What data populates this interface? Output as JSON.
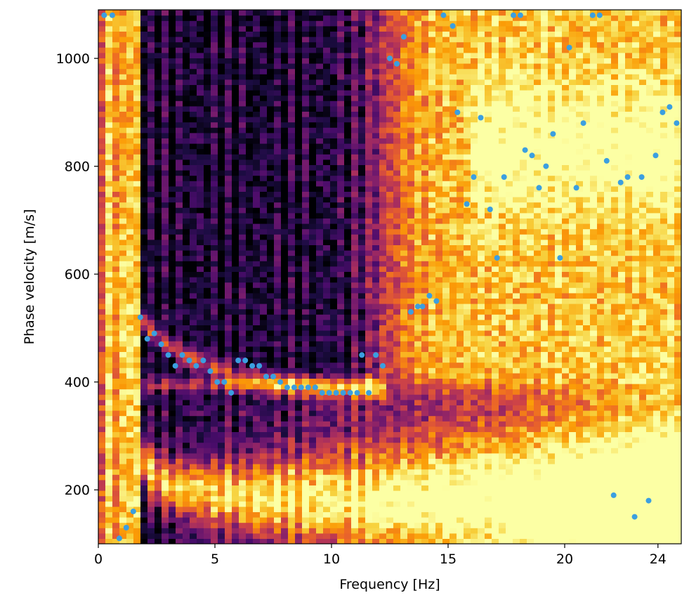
{
  "chart_data": {
    "type": "heatmap",
    "title": "",
    "xlabel": "Frequency [Hz]",
    "ylabel": "Phase velocity [m/s]",
    "xlim": [
      0,
      25
    ],
    "ylim": [
      100,
      1090
    ],
    "xticks": [
      0,
      5,
      10,
      15,
      20,
      24
    ],
    "yticks": [
      200,
      400,
      600,
      800,
      1000
    ],
    "grid": false,
    "colormap": [
      "#000004",
      "#1b0c41",
      "#4a0c6b",
      "#781c6d",
      "#a52c60",
      "#cf4446",
      "#ed6925",
      "#fb9b06",
      "#f7d13d",
      "#fcffa4"
    ],
    "marker_color": "#3b9fe0",
    "picked_points": [
      [
        0.25,
        1080
      ],
      [
        0.6,
        1080
      ],
      [
        0.9,
        110
      ],
      [
        1.2,
        130
      ],
      [
        1.5,
        160
      ],
      [
        1.8,
        520
      ],
      [
        2.1,
        480
      ],
      [
        2.4,
        490
      ],
      [
        2.7,
        470
      ],
      [
        3.0,
        450
      ],
      [
        3.3,
        430
      ],
      [
        3.6,
        450
      ],
      [
        3.9,
        440
      ],
      [
        4.2,
        430
      ],
      [
        4.5,
        440
      ],
      [
        4.8,
        420
      ],
      [
        5.1,
        400
      ],
      [
        5.4,
        400
      ],
      [
        5.7,
        380
      ],
      [
        6.0,
        440
      ],
      [
        6.3,
        440
      ],
      [
        6.6,
        430
      ],
      [
        6.9,
        430
      ],
      [
        7.2,
        410
      ],
      [
        7.5,
        410
      ],
      [
        7.8,
        400
      ],
      [
        8.1,
        390
      ],
      [
        8.4,
        390
      ],
      [
        8.7,
        390
      ],
      [
        9.0,
        390
      ],
      [
        9.3,
        390
      ],
      [
        9.6,
        380
      ],
      [
        9.9,
        380
      ],
      [
        10.2,
        380
      ],
      [
        10.5,
        380
      ],
      [
        10.8,
        380
      ],
      [
        11.1,
        380
      ],
      [
        11.3,
        450
      ],
      [
        11.6,
        380
      ],
      [
        11.9,
        450
      ],
      [
        12.2,
        430
      ],
      [
        12.5,
        1000
      ],
      [
        12.8,
        990
      ],
      [
        13.1,
        1040
      ],
      [
        13.4,
        530
      ],
      [
        13.7,
        540
      ],
      [
        13.9,
        540
      ],
      [
        14.2,
        560
      ],
      [
        14.5,
        550
      ],
      [
        14.8,
        1080
      ],
      [
        15.2,
        1060
      ],
      [
        15.4,
        900
      ],
      [
        15.8,
        730
      ],
      [
        16.1,
        780
      ],
      [
        16.4,
        890
      ],
      [
        16.8,
        720
      ],
      [
        17.1,
        630
      ],
      [
        17.4,
        780
      ],
      [
        17.8,
        1080
      ],
      [
        18.1,
        1080
      ],
      [
        18.3,
        830
      ],
      [
        18.6,
        820
      ],
      [
        18.9,
        760
      ],
      [
        19.2,
        800
      ],
      [
        19.5,
        860
      ],
      [
        19.8,
        630
      ],
      [
        20.2,
        1020
      ],
      [
        20.5,
        760
      ],
      [
        20.8,
        880
      ],
      [
        21.2,
        1080
      ],
      [
        21.5,
        1080
      ],
      [
        21.8,
        810
      ],
      [
        22.1,
        190
      ],
      [
        22.4,
        770
      ],
      [
        22.7,
        780
      ],
      [
        23.0,
        150
      ],
      [
        23.3,
        780
      ],
      [
        23.6,
        180
      ],
      [
        23.9,
        820
      ],
      [
        24.2,
        900
      ],
      [
        24.5,
        910
      ],
      [
        24.8,
        880
      ]
    ]
  }
}
